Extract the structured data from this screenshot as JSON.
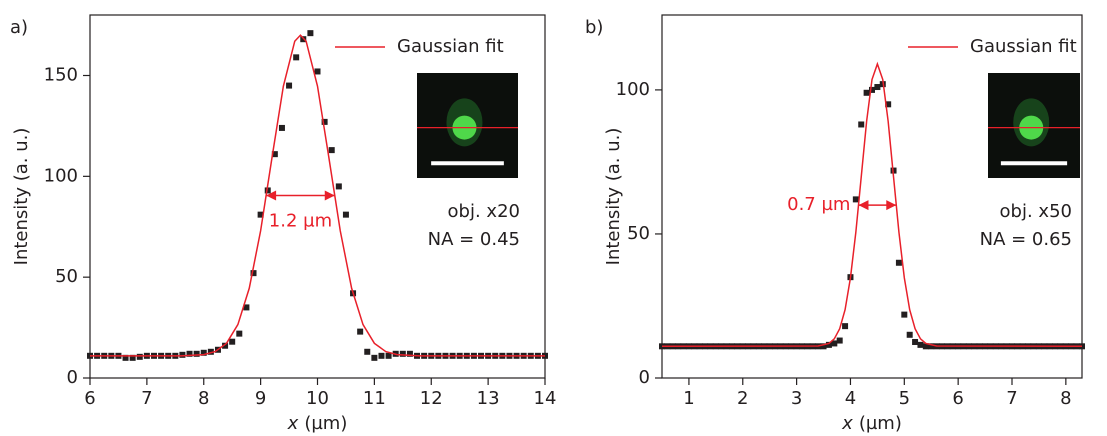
{
  "chart_data": [
    {
      "type": "scatter",
      "panel_label": "a)",
      "x_label": {
        "symbol": "x",
        "unit": "(µm)"
      },
      "y_label": "Intensity (a. u.)",
      "xlim": [
        6,
        14
      ],
      "ylim": [
        0,
        180
      ],
      "xticks": [
        6,
        7,
        8,
        9,
        10,
        11,
        12,
        13,
        14
      ],
      "yticks": [
        0,
        50,
        100,
        150
      ],
      "fwhm_label": "1.2 µm",
      "objective": "obj. x20",
      "aperture": "NA = 0.45",
      "series": [
        {
          "color": "#231f20",
          "x": [
            6,
            6.125,
            6.25,
            6.375,
            6.5,
            6.625,
            6.75,
            6.875,
            7,
            7.125,
            7.25,
            7.375,
            7.5,
            7.625,
            7.75,
            7.875,
            8,
            8.125,
            8.25,
            8.375,
            8.5,
            8.625,
            8.75,
            8.875,
            9,
            9.125,
            9.25,
            9.375,
            9.5,
            9.625,
            9.75,
            9.875,
            10,
            10.125,
            10.25,
            10.375,
            10.5,
            10.625,
            10.75,
            10.875,
            11,
            11.125,
            11.25,
            11.375,
            11.5,
            11.625,
            11.75,
            11.875,
            12,
            12.125,
            12.25,
            12.375,
            12.5,
            12.625,
            12.75,
            12.875,
            13,
            13.125,
            13.25,
            13.375,
            13.5,
            13.625,
            13.75,
            13.875,
            14
          ],
          "values": [
            11,
            11,
            11,
            11,
            11,
            10,
            10,
            10.5,
            11,
            11,
            11,
            11,
            11,
            11.5,
            12,
            12,
            12.5,
            13,
            14,
            16,
            18,
            22,
            35,
            52,
            81,
            93,
            111,
            124,
            145,
            159,
            168,
            171,
            152,
            127,
            113,
            95,
            81,
            42,
            23,
            13,
            10,
            11,
            11,
            12,
            12,
            12,
            11,
            11,
            11,
            11,
            11,
            11,
            11,
            11,
            11,
            11,
            11,
            11,
            11,
            11,
            11,
            11,
            11,
            11,
            11
          ]
        },
        {
          "name": "Gaussian fit",
          "color": "#e8202a",
          "x": [
            6,
            7,
            7.6,
            8,
            8.2,
            8.4,
            8.6,
            8.8,
            9,
            9.2,
            9.4,
            9.6,
            9.7,
            9.8,
            10,
            10.2,
            10.4,
            10.6,
            10.8,
            11,
            11.2,
            11.4,
            11.8,
            12.4,
            14
          ],
          "values": [
            11,
            11,
            11,
            11.6,
            13.1,
            17.2,
            26.5,
            44.5,
            73,
            109.3,
            144.7,
            167,
            170,
            167,
            144.7,
            109.3,
            73,
            44.5,
            26.5,
            17.2,
            13.1,
            11.6,
            11,
            11,
            11
          ]
        }
      ]
    },
    {
      "type": "scatter",
      "panel_label": "b)",
      "x_label": {
        "symbol": "x",
        "unit": "(µm)"
      },
      "y_label": "Intensity (a. u.)",
      "xlim": [
        0.5,
        8.3
      ],
      "ylim": [
        0,
        126
      ],
      "xticks": [
        1,
        2,
        3,
        4,
        5,
        6,
        7,
        8
      ],
      "yticks": [
        0,
        50,
        100
      ],
      "fwhm_label": "0.7 µm",
      "objective": "obj. x50",
      "aperture": "NA = 0.65",
      "series": [
        {
          "color": "#231f20",
          "x": [
            0.5,
            0.6,
            0.7,
            0.8,
            0.9,
            1,
            1.1,
            1.2,
            1.3,
            1.4,
            1.5,
            1.6,
            1.7,
            1.8,
            1.9,
            2,
            2.1,
            2.2,
            2.3,
            2.4,
            2.5,
            2.6,
            2.7,
            2.8,
            2.9,
            3,
            3.1,
            3.2,
            3.3,
            3.4,
            3.5,
            3.6,
            3.7,
            3.8,
            3.9,
            4,
            4.1,
            4.2,
            4.3,
            4.4,
            4.5,
            4.6,
            4.7,
            4.8,
            4.9,
            5,
            5.1,
            5.2,
            5.3,
            5.4,
            5.5,
            5.6,
            5.7,
            5.8,
            5.9,
            6,
            6.1,
            6.2,
            6.3,
            6.4,
            6.5,
            6.6,
            6.7,
            6.8,
            6.9,
            7,
            7.1,
            7.2,
            7.3,
            7.4,
            7.5,
            7.6,
            7.7,
            7.8,
            7.9,
            8,
            8.1,
            8.2,
            8.3
          ],
          "values": [
            11,
            11,
            11,
            11,
            11,
            11,
            11,
            11,
            11,
            11,
            11,
            11,
            11,
            11,
            11,
            11,
            11,
            11,
            11,
            11,
            11,
            11,
            11,
            11,
            11,
            11,
            11,
            11,
            11,
            11,
            11,
            11.5,
            12,
            13,
            18,
            35,
            62,
            88,
            99,
            100,
            101,
            102,
            95,
            72,
            40,
            22,
            15,
            12.5,
            11.5,
            11,
            11,
            11,
            11,
            11,
            11,
            11,
            11,
            11,
            11,
            11,
            11,
            11,
            11,
            11,
            11,
            11,
            11,
            11,
            11,
            11,
            11,
            11,
            11,
            11,
            11,
            11,
            11,
            11,
            11
          ]
        },
        {
          "name": "Gaussian fit",
          "color": "#e8202a",
          "x": [
            0.5,
            3.4,
            3.6,
            3.7,
            3.8,
            3.9,
            4,
            4.1,
            4.2,
            4.3,
            4.4,
            4.5,
            4.6,
            4.7,
            4.8,
            4.9,
            5,
            5.1,
            5.2,
            5.3,
            5.4,
            5.6,
            8.3
          ],
          "values": [
            11,
            11.1,
            12,
            13.6,
            17.1,
            23.7,
            34.8,
            50.6,
            69.8,
            89.1,
            103.6,
            109,
            103.6,
            89.1,
            69.8,
            50.6,
            34.8,
            23.7,
            17.1,
            13.6,
            12,
            11.1,
            11
          ]
        }
      ]
    }
  ]
}
